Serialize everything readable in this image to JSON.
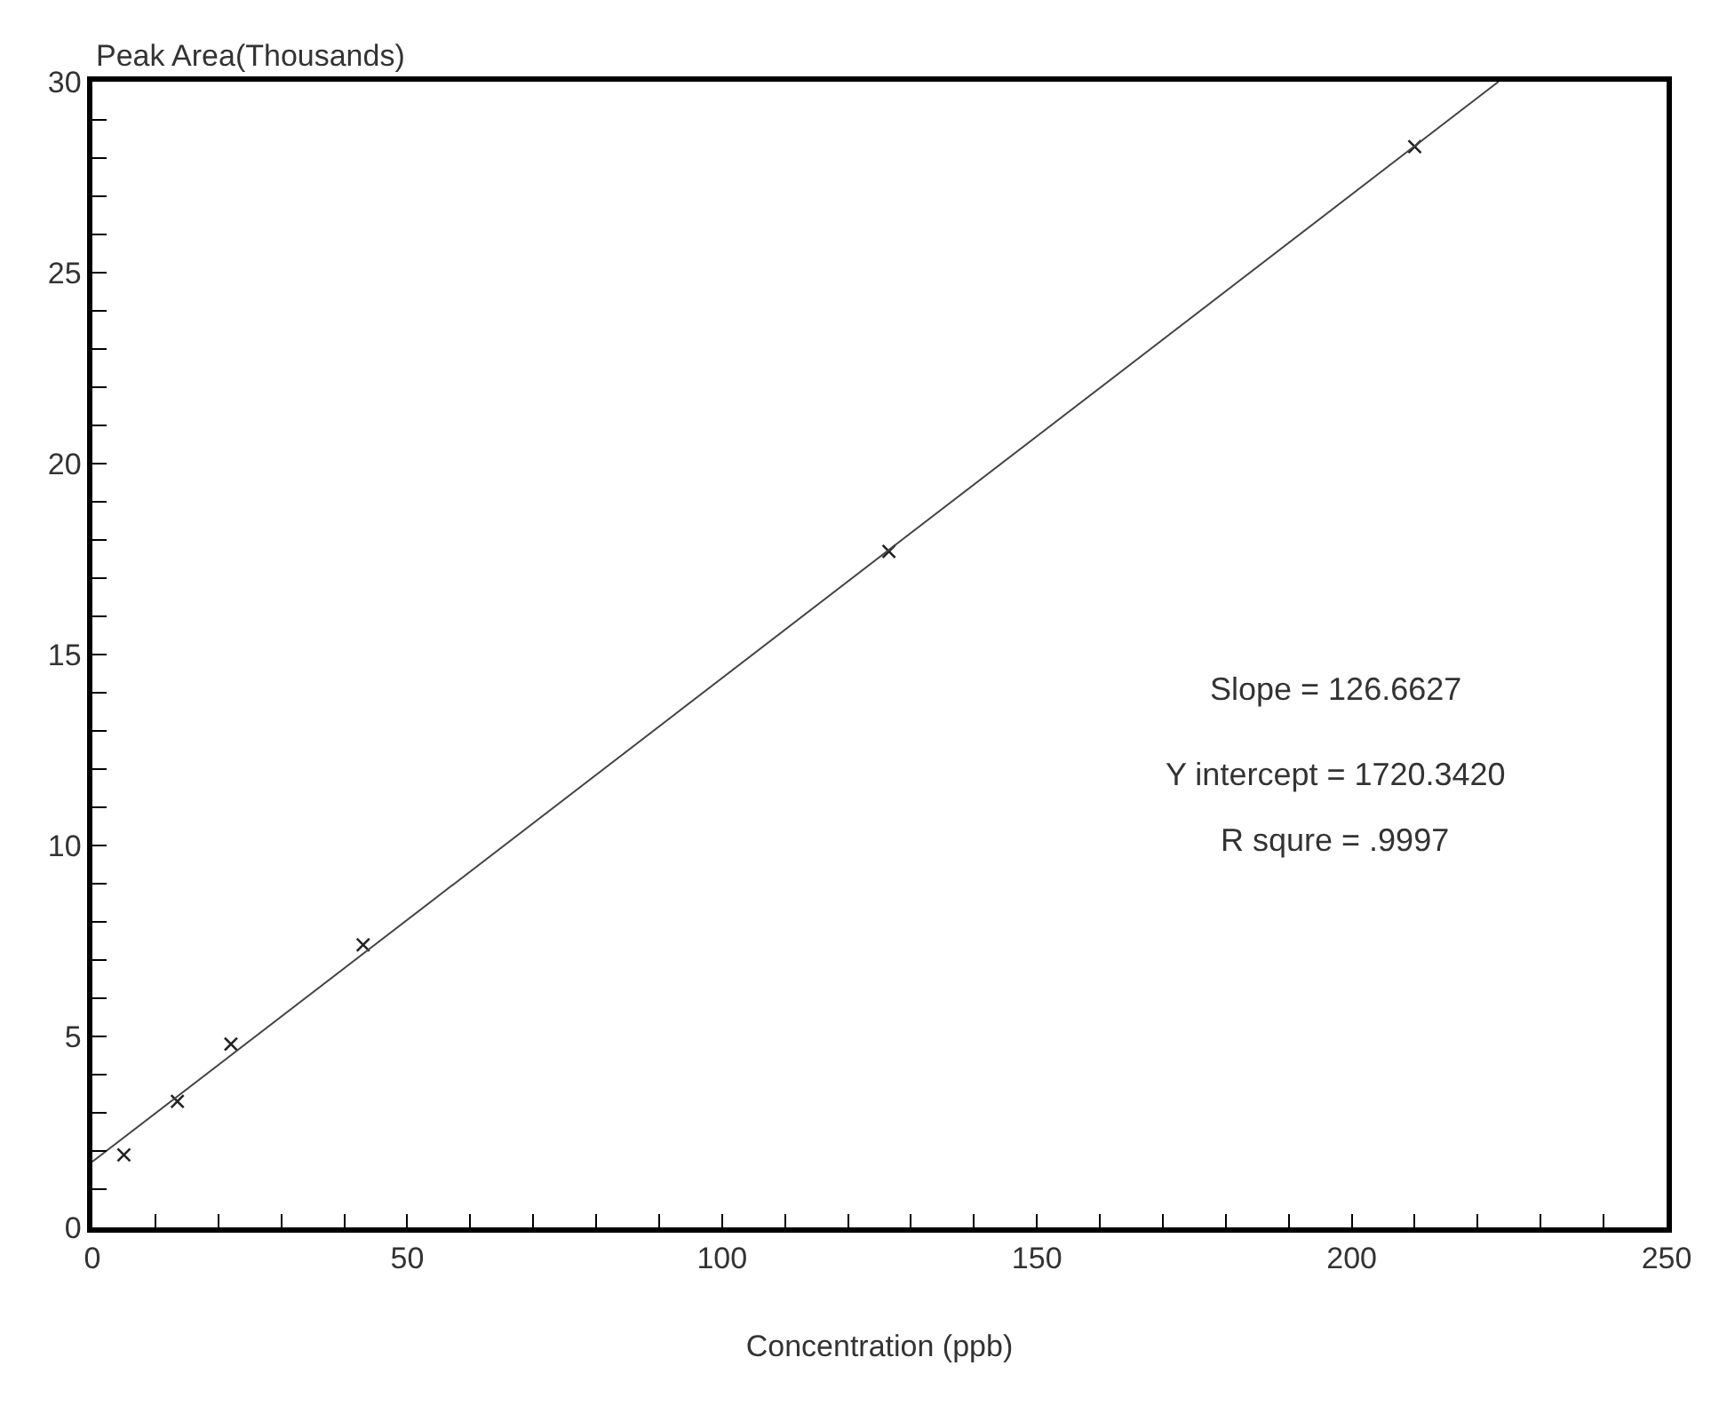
{
  "chart_data": {
    "type": "scatter",
    "xlabel": "Concentration (ppb)",
    "ylabel": "Peak Area(Thousands)",
    "marker": "cross",
    "xlim": [
      0,
      250
    ],
    "ylim": [
      0,
      30
    ],
    "xticks": [
      0,
      {
        "value": 10,
        "label": null
      },
      {
        "value": 20,
        "label": null
      },
      {
        "value": 30,
        "label": null
      },
      {
        "value": 40,
        "label": null
      },
      50,
      {
        "value": 60,
        "label": null
      },
      {
        "value": 70,
        "label": null
      },
      {
        "value": 80,
        "label": null
      },
      {
        "value": 90,
        "label": null
      },
      100,
      {
        "value": 110,
        "label": null
      },
      {
        "value": 120,
        "label": null
      },
      {
        "value": 130,
        "label": null
      },
      {
        "value": 140,
        "label": null
      },
      150,
      {
        "value": 160,
        "label": null
      },
      {
        "value": 170,
        "label": null
      },
      {
        "value": 180,
        "label": null
      },
      {
        "value": 190,
        "label": null
      },
      200,
      {
        "value": 210,
        "label": null
      },
      {
        "value": 220,
        "label": null
      },
      {
        "value": 230,
        "label": null
      },
      {
        "value": 240,
        "label": null
      },
      250
    ],
    "yticks": [
      0,
      {
        "value": 1,
        "label": null
      },
      {
        "value": 2,
        "label": null
      },
      {
        "value": 3,
        "label": null
      },
      {
        "value": 4,
        "label": null
      },
      5,
      {
        "value": 6,
        "label": null
      },
      {
        "value": 7,
        "label": null
      },
      {
        "value": 8,
        "label": null
      },
      {
        "value": 9,
        "label": null
      },
      10,
      {
        "value": 11,
        "label": null
      },
      {
        "value": 12,
        "label": null
      },
      {
        "value": 13,
        "label": null
      },
      {
        "value": 14,
        "label": null
      },
      15,
      {
        "value": 16,
        "label": null
      },
      {
        "value": 17,
        "label": null
      },
      {
        "value": 18,
        "label": null
      },
      {
        "value": 19,
        "label": null
      },
      20,
      {
        "value": 21,
        "label": null
      },
      {
        "value": 22,
        "label": null
      },
      {
        "value": 23,
        "label": null
      },
      {
        "value": 24,
        "label": null
      },
      25,
      {
        "value": 26,
        "label": null
      },
      {
        "value": 27,
        "label": null
      },
      {
        "value": 28,
        "label": null
      },
      {
        "value": 29,
        "label": null
      },
      30
    ],
    "series": [
      {
        "color": "#222222",
        "x": [
          5,
          13.5,
          22,
          43,
          126.5,
          210
        ],
        "values": [
          1.9,
          3.3,
          4.8,
          7.4,
          17.7,
          28.3
        ]
      },
      {
        "type": "line",
        "color": "#444444",
        "marker": "none",
        "x": [
          0,
          223.3
        ],
        "values": [
          1.72,
          30
        ]
      }
    ],
    "annotations": [
      "Slope = 126.6627",
      "Y intercept = 1720.3420",
      "R squre = .9997"
    ]
  }
}
